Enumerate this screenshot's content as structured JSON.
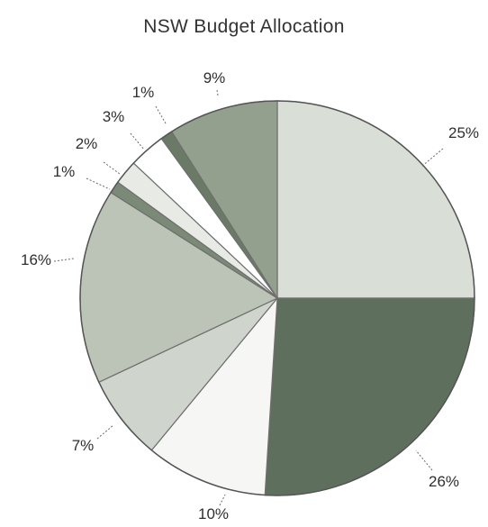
{
  "chart_data": {
    "type": "pie",
    "title": "NSW Budget Allocation",
    "values": [
      25,
      26,
      10,
      7,
      16,
      1,
      2,
      3,
      1,
      9
    ],
    "labels": [
      "25%",
      "26%",
      "10%",
      "7%",
      "16%",
      "1%",
      "2%",
      "3%",
      "1%",
      "9%"
    ],
    "colors": [
      "#d9dfd6",
      "#5f6f5e",
      "#f6f6f4",
      "#cfd4cc",
      "#bcc4b8",
      "#7b8a76",
      "#e8ebe5",
      "#ffffff",
      "#6b7a66",
      "#93a08e"
    ],
    "legend": "none",
    "start_angle": "12 o'clock",
    "direction": "clockwise"
  }
}
